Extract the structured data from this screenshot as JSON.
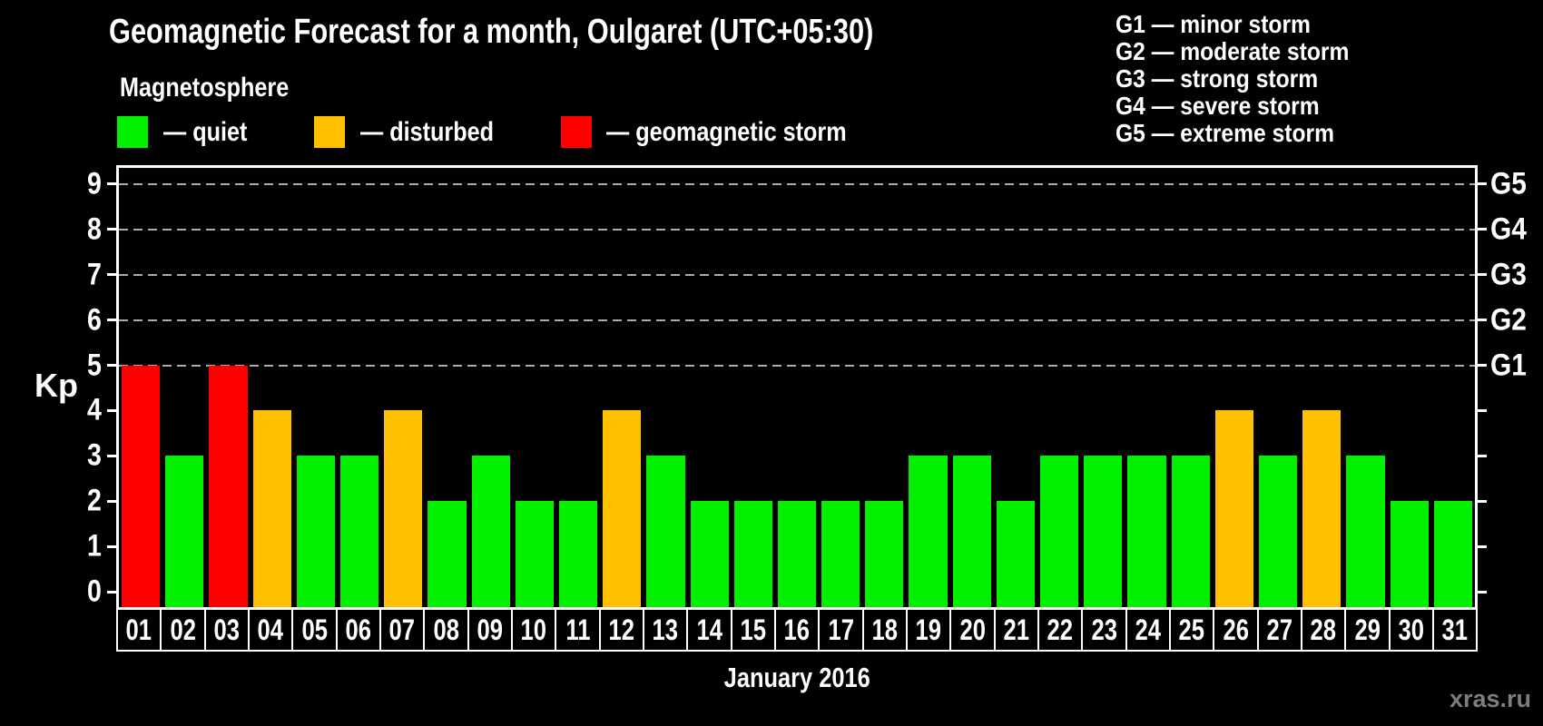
{
  "title": "Geomagnetic Forecast for a month, Oulgaret (UTC+05:30)",
  "subtitle": "Magnetosphere",
  "legend": {
    "items": [
      {
        "label": "— quiet",
        "state": "quiet",
        "color": "#00f000"
      },
      {
        "label": "— disturbed",
        "state": "disturbed",
        "color": "#ffc000"
      },
      {
        "label": "— geomagnetic storm",
        "state": "storm",
        "color": "#ff0000"
      }
    ]
  },
  "storm_legend": {
    "items": [
      "G1 — minor storm",
      "G2 — moderate storm",
      "G3 — strong storm",
      "G4 — severe storm",
      "G5 — extreme storm"
    ]
  },
  "axis": {
    "y_left_label": "Kp",
    "y_left_ticks": [
      0,
      1,
      2,
      3,
      4,
      5,
      6,
      7,
      8,
      9
    ],
    "y_right_labels": [
      {
        "label": "G1",
        "kp": 5
      },
      {
        "label": "G2",
        "kp": 6
      },
      {
        "label": "G3",
        "kp": 7
      },
      {
        "label": "G4",
        "kp": 8
      },
      {
        "label": "G5",
        "kp": 9
      }
    ],
    "x_title": "January 2016"
  },
  "watermark": "xras.ru",
  "chart_data": {
    "type": "bar",
    "title": "Geomagnetic Forecast for a month, Oulgaret (UTC+05:30)",
    "xlabel": "January 2016",
    "ylabel": "Kp",
    "ylim": [
      0,
      9
    ],
    "grid": "dashed horizontal lines at Kp 5,6,7,8,9 (G1–G5 levels)",
    "legend_position": "top",
    "categories": [
      "01",
      "02",
      "03",
      "04",
      "05",
      "06",
      "07",
      "08",
      "09",
      "10",
      "11",
      "12",
      "13",
      "14",
      "15",
      "16",
      "17",
      "18",
      "19",
      "20",
      "21",
      "22",
      "23",
      "24",
      "25",
      "26",
      "27",
      "28",
      "29",
      "30",
      "31"
    ],
    "values": [
      5,
      3,
      5,
      4,
      3,
      3,
      4,
      2,
      3,
      2,
      2,
      4,
      3,
      2,
      2,
      2,
      2,
      2,
      3,
      3,
      2,
      3,
      3,
      3,
      3,
      4,
      3,
      4,
      3,
      2,
      2
    ],
    "states": [
      "storm",
      "quiet",
      "storm",
      "disturbed",
      "quiet",
      "quiet",
      "disturbed",
      "quiet",
      "quiet",
      "quiet",
      "quiet",
      "disturbed",
      "quiet",
      "quiet",
      "quiet",
      "quiet",
      "quiet",
      "quiet",
      "quiet",
      "quiet",
      "quiet",
      "quiet",
      "quiet",
      "quiet",
      "quiet",
      "disturbed",
      "quiet",
      "disturbed",
      "quiet",
      "quiet",
      "quiet"
    ],
    "state_colors": {
      "quiet": "#00f000",
      "disturbed": "#ffc000",
      "storm": "#ff0000"
    },
    "gridline_levels": [
      5,
      6,
      7,
      8,
      9
    ],
    "colors": {
      "background": "#000000",
      "axis": "#ffffff",
      "gridline": "#ababab",
      "watermark": "#7d7d7d"
    }
  }
}
